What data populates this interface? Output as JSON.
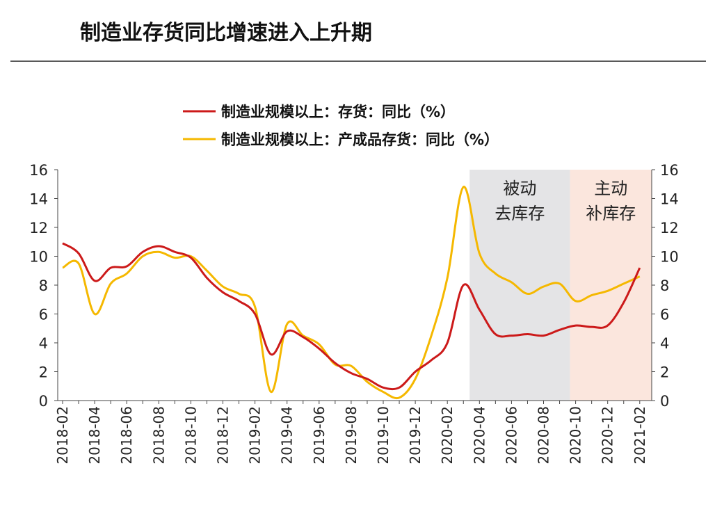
{
  "title": "制造业存货同比增速进入上升期",
  "chart_data": {
    "type": "line",
    "title": "制造业存货同比增速进入上升期",
    "x": [
      "2018-02",
      "2018-03",
      "2018-04",
      "2018-05",
      "2018-06",
      "2018-07",
      "2018-08",
      "2018-09",
      "2018-10",
      "2018-11",
      "2018-12",
      "2019-01",
      "2019-02",
      "2019-03",
      "2019-04",
      "2019-05",
      "2019-06",
      "2019-07",
      "2019-08",
      "2019-09",
      "2019-10",
      "2019-11",
      "2019-12",
      "2020-01",
      "2020-02",
      "2020-03",
      "2020-04",
      "2020-05",
      "2020-06",
      "2020-07",
      "2020-08",
      "2020-09",
      "2020-10",
      "2020-11",
      "2020-12",
      "2021-01",
      "2021-02"
    ],
    "x_tick_labels": [
      "2018-02",
      "2018-04",
      "2018-06",
      "2018-08",
      "2018-10",
      "2018-12",
      "2019-02",
      "2019-04",
      "2019-06",
      "2019-08",
      "2019-10",
      "2019-12",
      "2020-02",
      "2020-04",
      "2020-06",
      "2020-08",
      "2020-10",
      "2020-12",
      "2021-02"
    ],
    "ylim": [
      0,
      16
    ],
    "y_ticks": [
      "0",
      "2",
      "4",
      "6",
      "8",
      "10",
      "12",
      "14",
      "16"
    ],
    "y2lim": [
      0,
      16
    ],
    "grid": false,
    "legend": "top-center",
    "series": [
      {
        "name": "制造业规模以上：存货：同比（%）",
        "color": "#cc1a1a",
        "values": [
          10.9,
          10.2,
          8.3,
          9.2,
          9.3,
          10.3,
          10.7,
          10.3,
          9.9,
          8.5,
          7.5,
          6.9,
          6.0,
          3.2,
          4.8,
          4.4,
          3.6,
          2.6,
          1.9,
          1.5,
          0.9,
          0.9,
          2.0,
          2.8,
          4.0,
          8.0,
          6.3,
          4.6,
          4.5,
          4.6,
          4.5,
          4.9,
          5.2,
          5.1,
          5.2,
          6.8,
          9.2
        ]
      },
      {
        "name": "制造业规模以上：产成品存货：同比（%）",
        "color": "#f5b800",
        "values": [
          9.2,
          9.5,
          6.0,
          8.1,
          8.8,
          10.0,
          10.3,
          9.9,
          10.0,
          9.0,
          7.9,
          7.4,
          6.5,
          0.6,
          5.3,
          4.5,
          3.9,
          2.5,
          2.4,
          1.3,
          0.6,
          0.2,
          1.5,
          4.5,
          8.5,
          14.8,
          10.2,
          8.8,
          8.2,
          7.4,
          7.9,
          8.1,
          6.9,
          7.3,
          7.6,
          8.1,
          8.6
        ]
      }
    ],
    "annotations": [
      {
        "lines": [
          "被动",
          "去库存"
        ],
        "start": "2020-03",
        "end": "2020-09",
        "color": "#e4e4e6"
      },
      {
        "lines": [
          "主动",
          "补库存"
        ],
        "start": "2020-09",
        "end": "2021-02",
        "color": "#fbe6dd"
      }
    ]
  }
}
